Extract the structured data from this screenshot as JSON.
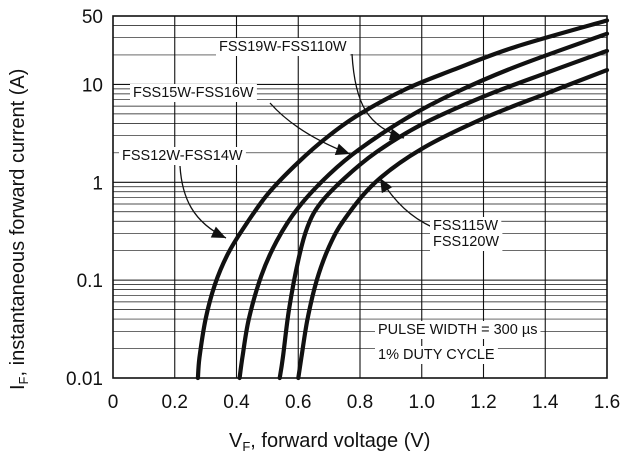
{
  "chart_data": {
    "type": "line",
    "xlabel_main": "V",
    "xlabel_sub": "F",
    "xlabel_rest": ", forward voltage (V)",
    "ylabel_main": "I",
    "ylabel_sub": "F",
    "ylabel_rest": ", instantaneous forward current (A)",
    "xlim": [
      0,
      1.6
    ],
    "ylim": [
      0.01,
      50
    ],
    "y_scale": "log",
    "x_ticks": [
      "0",
      "0.2",
      "0.4",
      "0.6",
      "0.8",
      "1.0",
      "1.2",
      "1.4",
      "1.6"
    ],
    "x_tick_values": [
      0,
      0.2,
      0.4,
      0.6,
      0.8,
      1.0,
      1.2,
      1.4,
      1.6
    ],
    "y_ticks": [
      "0.01",
      "0.1",
      "1",
      "10",
      "50"
    ],
    "y_tick_values": [
      0.01,
      0.1,
      1,
      10,
      50
    ],
    "grid": true,
    "series": [
      {
        "name": "FSS12W-FSS14W",
        "x": [
          0.275,
          0.28,
          0.3,
          0.33,
          0.37,
          0.42,
          0.5,
          0.6,
          0.7,
          0.8,
          0.95,
          1.1,
          1.3,
          1.6
        ],
        "y": [
          0.01,
          0.016,
          0.04,
          0.09,
          0.18,
          0.33,
          0.75,
          1.6,
          3.0,
          5.0,
          9.0,
          14,
          24,
          45
        ]
      },
      {
        "name": "FSS15W-FSS16W",
        "x": [
          0.41,
          0.42,
          0.44,
          0.48,
          0.53,
          0.6,
          0.7,
          0.8,
          0.95,
          1.1,
          1.3,
          1.6
        ],
        "y": [
          0.01,
          0.017,
          0.04,
          0.11,
          0.25,
          0.55,
          1.2,
          2.2,
          4.5,
          8.0,
          15,
          33
        ]
      },
      {
        "name": "FSS19W-FSS110W",
        "x": [
          0.54,
          0.55,
          0.57,
          0.6,
          0.63,
          0.67,
          0.75,
          0.85,
          1.0,
          1.2,
          1.4,
          1.6
        ],
        "y": [
          0.01,
          0.016,
          0.05,
          0.16,
          0.35,
          0.6,
          1.1,
          2.0,
          3.9,
          7.5,
          13,
          22
        ]
      },
      {
        "name": "FSS115W FSS120W",
        "x": [
          0.6,
          0.61,
          0.63,
          0.66,
          0.7,
          0.75,
          0.85,
          1.0,
          1.2,
          1.4,
          1.6
        ],
        "y": [
          0.01,
          0.016,
          0.04,
          0.1,
          0.22,
          0.42,
          1.0,
          2.2,
          4.5,
          8.0,
          14
        ]
      }
    ],
    "labels": {
      "a": "FSS19W-FSS110W",
      "b": "FSS15W-FSS16W",
      "c": "FSS12W-FSS14W",
      "d1": "FSS115W",
      "d2": "FSS120W",
      "pulse": "PULSE WIDTH = 300 µs",
      "duty": "1% DUTY CYCLE"
    }
  }
}
